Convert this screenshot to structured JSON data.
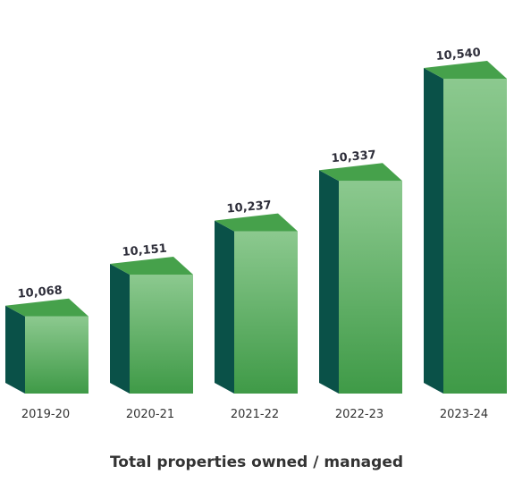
{
  "chart_data": {
    "type": "bar",
    "title": "Total properties owned / managed",
    "categories": [
      "2019-20",
      "2020-21",
      "2021-22",
      "2022-23",
      "2023-24"
    ],
    "values": [
      10068,
      10151,
      10237,
      10337,
      10540
    ],
    "value_labels": [
      "10,068",
      "10,151",
      "10,237",
      "10,337",
      "10,540"
    ],
    "xlabel": "",
    "ylabel": "",
    "ylim": [
      10000,
      10560
    ],
    "grid": false,
    "legend": "none",
    "colors": {
      "front_top": "#8cc98f",
      "front_bottom": "#3f9a47",
      "side": "#0a5148",
      "top_face": "#46a14b",
      "value_text": "#2e2e3a",
      "axis_text": "#333333"
    }
  }
}
